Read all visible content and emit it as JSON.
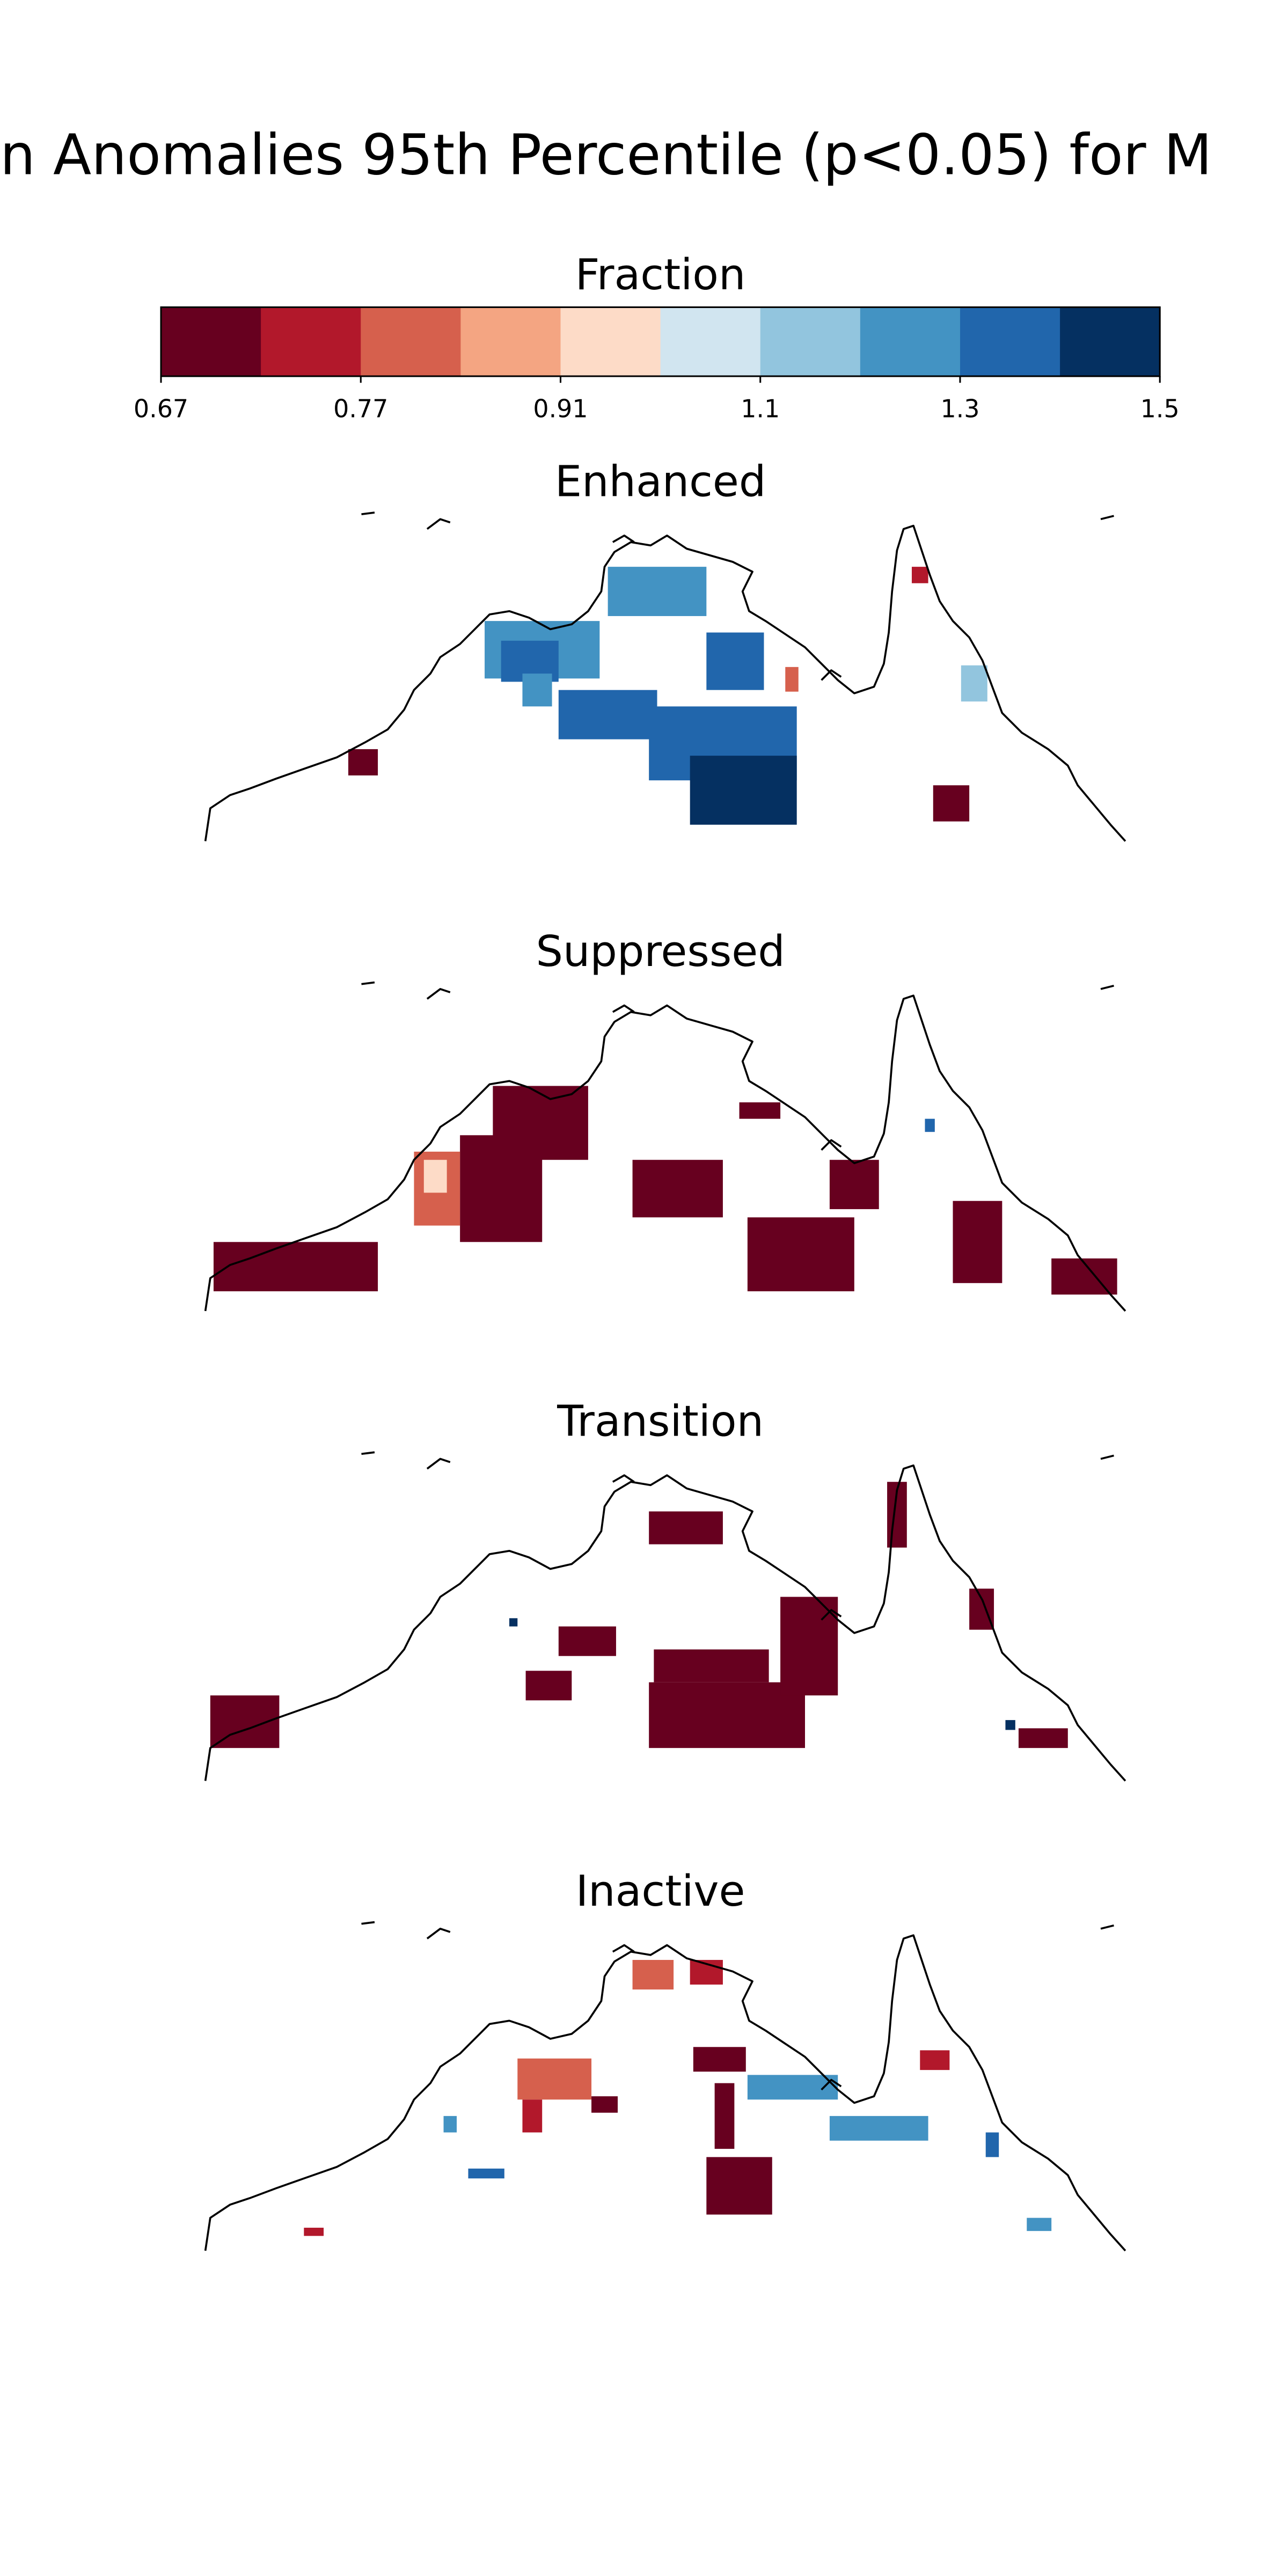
{
  "title": "n Anomalies 95th Percentile (p<0.05) for M",
  "colorbar": {
    "label": "Fraction",
    "colors": [
      "#67001f",
      "#b2182b",
      "#d6604d",
      "#f4a582",
      "#fddbc7",
      "#d1e5f0",
      "#92c5de",
      "#4393c3",
      "#2166ac",
      "#053061"
    ],
    "ticks": [
      0.67,
      0.77,
      0.91,
      1.1,
      1.3,
      1.5
    ]
  },
  "panels": [
    {
      "title": "Enhanced"
    },
    {
      "title": "Suppressed"
    },
    {
      "title": "Transition"
    },
    {
      "title": "Inactive"
    }
  ]
}
